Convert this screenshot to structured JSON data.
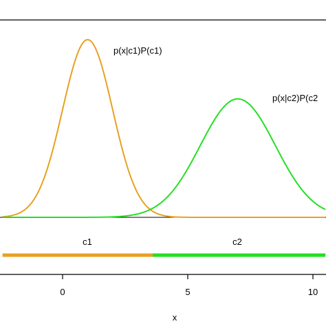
{
  "chart_data": {
    "type": "line",
    "title": "",
    "xlabel": "x",
    "ylabel": "",
    "xlim": [
      -2.4,
      10.5
    ],
    "ylim": [
      0,
      1
    ],
    "grid": false,
    "legend": "none",
    "x_ticks": [
      0,
      5,
      10
    ],
    "x_tick_labels": [
      "0",
      "5",
      "10"
    ],
    "series": [
      {
        "name": "p(x|c1)P(c1)",
        "color": "#E8A020",
        "curve": "gaussian",
        "mean": 1,
        "sd": 1,
        "peak": 0.9
      },
      {
        "name": "p(x|c2)P(c2",
        "color": "#22E022",
        "curve": "gaussian",
        "mean": 7,
        "sd": 1.5,
        "peak": 0.6
      }
    ],
    "decision_regions": [
      {
        "label": "c1",
        "from": -2.4,
        "to": 3.6,
        "color": "#E8A020"
      },
      {
        "label": "c2",
        "from": 3.6,
        "to": 10.5,
        "color": "#22E022"
      }
    ]
  }
}
